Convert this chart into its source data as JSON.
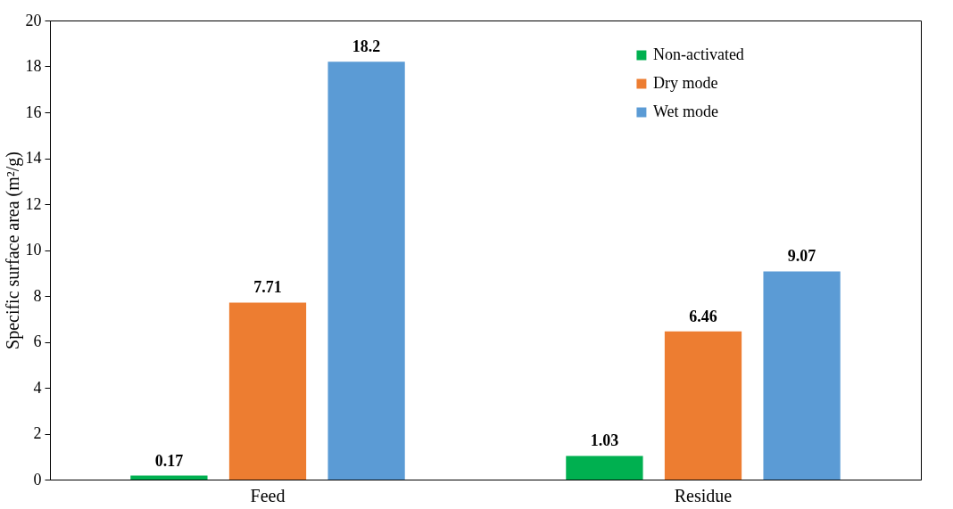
{
  "chart_data": {
    "type": "bar",
    "ylabel": "Specific surface area (m²/g)",
    "categories": [
      "Feed",
      "Residue"
    ],
    "series": [
      {
        "name": "Non-activated",
        "color": "#00b050",
        "values": [
          0.17,
          1.03
        ]
      },
      {
        "name": "Dry mode",
        "color": "#ed7d31",
        "values": [
          7.71,
          6.46
        ]
      },
      {
        "name": "Wet mode",
        "color": "#5b9bd5",
        "values": [
          18.2,
          9.07
        ]
      }
    ],
    "ylim": [
      0,
      20
    ],
    "yticks": [
      0,
      2,
      4,
      6,
      8,
      10,
      12,
      14,
      16,
      18,
      20
    ],
    "legend": "top right",
    "data_labels": true
  }
}
